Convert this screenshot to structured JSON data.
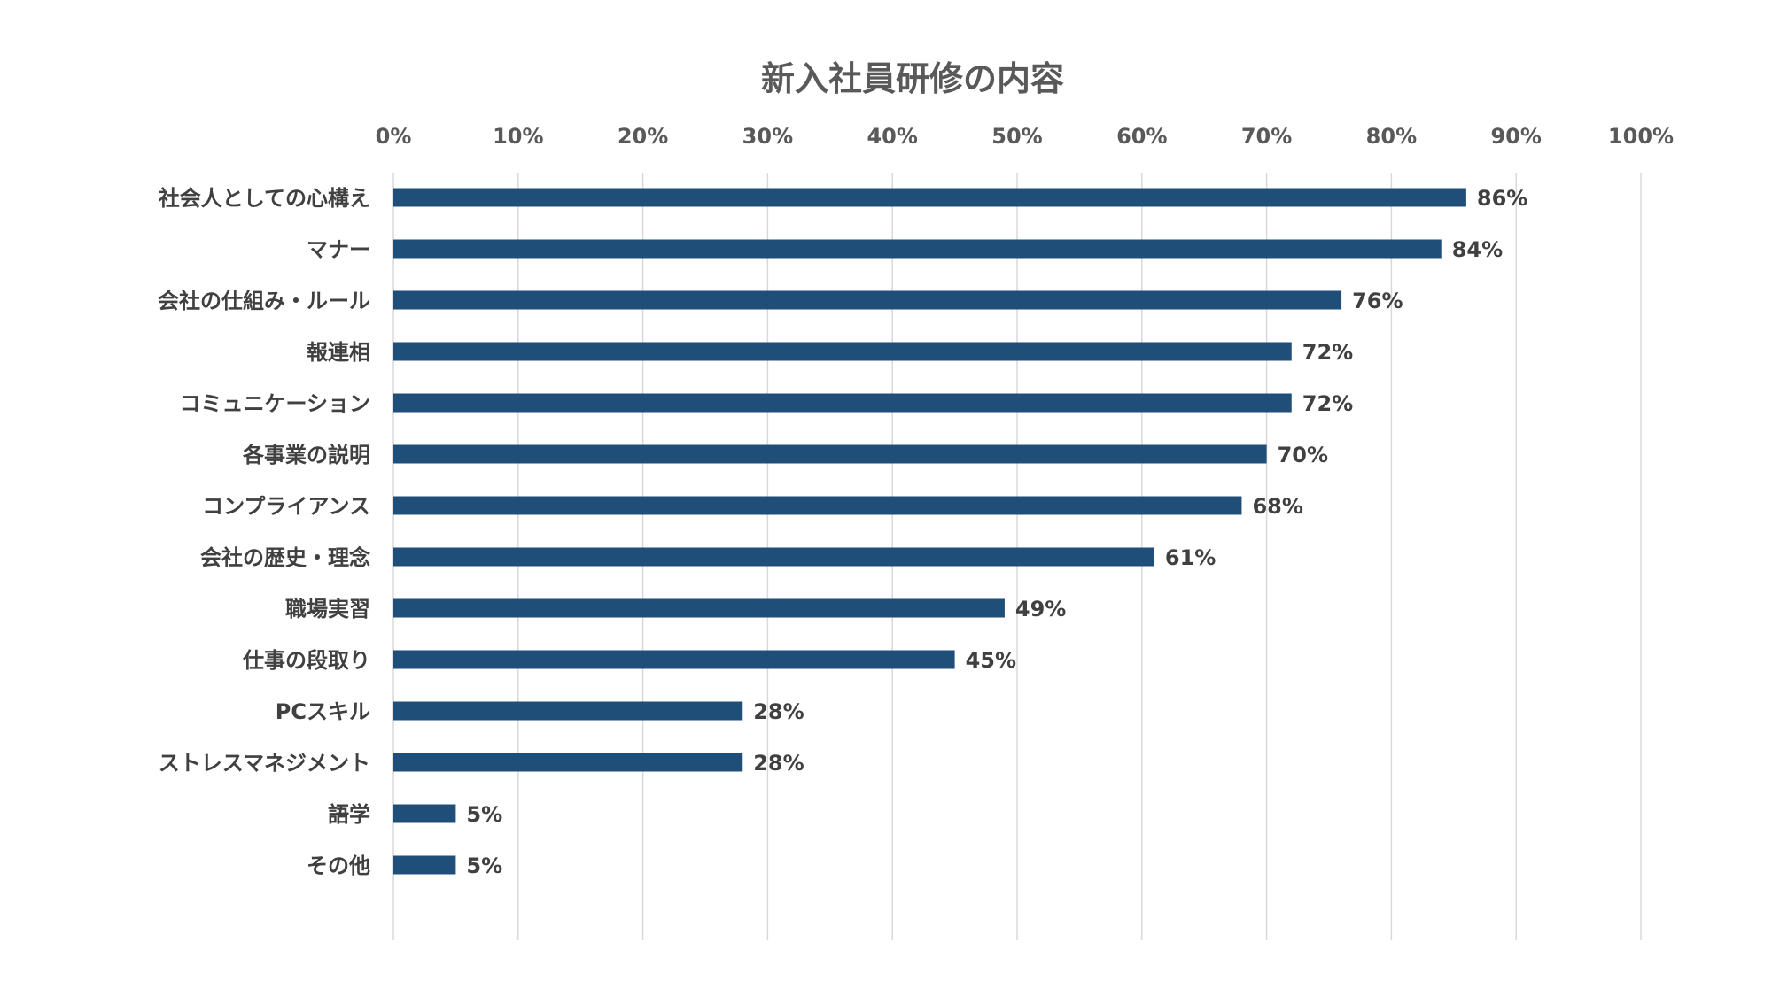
{
  "chart_data": {
    "type": "bar",
    "orientation": "horizontal",
    "title": "新入社員研修の内容",
    "xlabel": "",
    "ylabel": "",
    "xlim": [
      0,
      100
    ],
    "tick_values": [
      0,
      10,
      20,
      30,
      40,
      50,
      60,
      70,
      80,
      90,
      100
    ],
    "tick_labels": [
      "0%",
      "10%",
      "20%",
      "30%",
      "40%",
      "50%",
      "60%",
      "70%",
      "80%",
      "90%",
      "100%"
    ],
    "x_axis_position": "top",
    "grid": true,
    "legend": "none",
    "bar_color": "#1F4E79",
    "grid_color": "#D9D9D9",
    "categories": [
      "社会人としての心構え",
      "マナー",
      "会社の仕組み・ルール",
      "報連相",
      "コミュニケーション",
      "各事業の説明",
      "コンプライアンス",
      "会社の歴史・理念",
      "職場実習",
      "仕事の段取り",
      "PCスキル",
      "ストレスマネジメント",
      "語学",
      "その他"
    ],
    "values": [
      86,
      84,
      76,
      72,
      72,
      70,
      68,
      61,
      49,
      45,
      28,
      28,
      5,
      5
    ],
    "data_labels": [
      "86%",
      "84%",
      "76%",
      "72%",
      "72%",
      "70%",
      "68%",
      "61%",
      "49%",
      "45%",
      "28%",
      "28%",
      "5%",
      "5%"
    ]
  }
}
